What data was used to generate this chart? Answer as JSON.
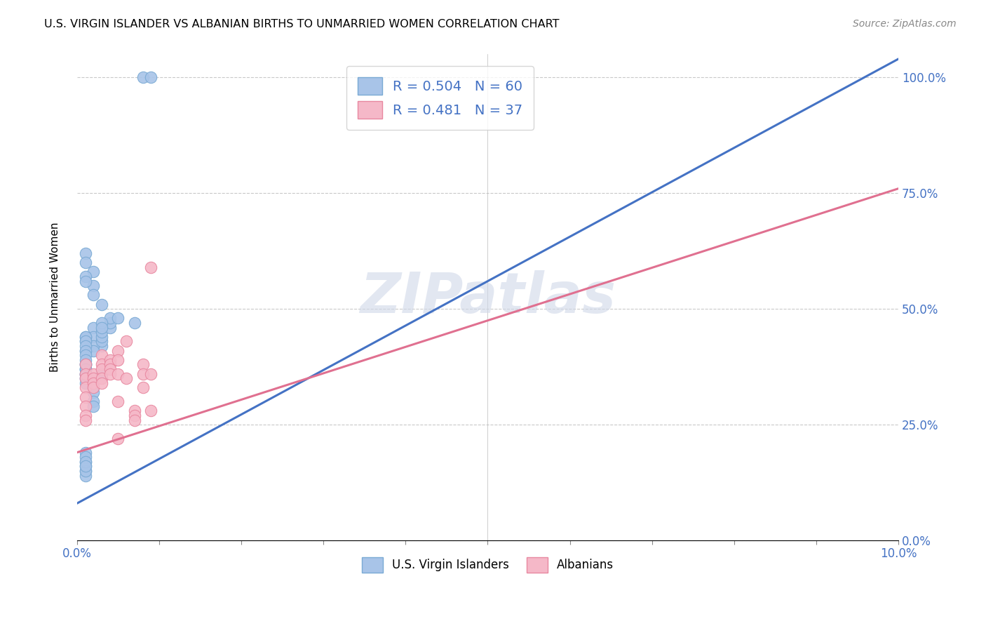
{
  "title": "U.S. VIRGIN ISLANDER VS ALBANIAN BIRTHS TO UNMARRIED WOMEN CORRELATION CHART",
  "source": "Source: ZipAtlas.com",
  "ylabel": "Births to Unmarried Women",
  "xlim": [
    0.0,
    0.1
  ],
  "ylim": [
    0.0,
    1.05
  ],
  "xtick_positions": [
    0.0,
    0.01,
    0.02,
    0.03,
    0.04,
    0.05,
    0.06,
    0.07,
    0.08,
    0.09,
    0.1
  ],
  "xtick_labels_sparse": {
    "0.0": "0.0%",
    "0.10": "10.0%"
  },
  "yticks": [
    0.0,
    0.25,
    0.5,
    0.75,
    1.0
  ],
  "ytick_labels": [
    "0.0%",
    "25.0%",
    "50.0%",
    "75.0%",
    "100.0%"
  ],
  "blue_color": "#a8c4e8",
  "blue_edge_color": "#7aaad4",
  "pink_color": "#f5b8c8",
  "pink_edge_color": "#e888a0",
  "blue_line_color": "#4472c4",
  "pink_line_color": "#e07090",
  "legend_r1": "R = 0.504",
  "legend_n1": "N = 60",
  "legend_r2": "R = 0.481",
  "legend_n2": "N = 37",
  "watermark": "ZIPatlas",
  "blue_scatter_x": [
    0.003,
    0.007,
    0.002,
    0.002,
    0.002,
    0.003,
    0.001,
    0.001,
    0.001,
    0.001,
    0.002,
    0.002,
    0.003,
    0.001,
    0.001,
    0.001,
    0.001,
    0.001,
    0.001,
    0.001,
    0.001,
    0.001,
    0.001,
    0.001,
    0.001,
    0.002,
    0.002,
    0.003,
    0.003,
    0.003,
    0.004,
    0.004,
    0.004,
    0.003,
    0.003,
    0.002,
    0.002,
    0.002,
    0.002,
    0.001,
    0.001,
    0.001,
    0.001,
    0.001,
    0.001,
    0.001,
    0.001,
    0.001,
    0.001,
    0.001,
    0.001,
    0.001,
    0.001,
    0.005,
    0.001,
    0.001,
    0.001,
    0.001,
    0.008,
    0.009
  ],
  "blue_scatter_y": [
    0.36,
    0.47,
    0.58,
    0.55,
    0.53,
    0.51,
    0.62,
    0.6,
    0.57,
    0.56,
    0.46,
    0.44,
    0.42,
    0.43,
    0.44,
    0.41,
    0.38,
    0.36,
    0.37,
    0.36,
    0.35,
    0.37,
    0.38,
    0.35,
    0.34,
    0.42,
    0.41,
    0.43,
    0.44,
    0.45,
    0.46,
    0.47,
    0.48,
    0.47,
    0.46,
    0.33,
    0.32,
    0.3,
    0.29,
    0.44,
    0.43,
    0.42,
    0.41,
    0.4,
    0.39,
    0.38,
    0.37,
    0.36,
    0.15,
    0.16,
    0.17,
    0.14,
    0.15,
    0.48,
    0.19,
    0.18,
    0.17,
    0.16,
    1.0,
    1.0
  ],
  "pink_scatter_x": [
    0.001,
    0.001,
    0.001,
    0.001,
    0.001,
    0.001,
    0.001,
    0.001,
    0.002,
    0.002,
    0.002,
    0.002,
    0.003,
    0.003,
    0.003,
    0.003,
    0.003,
    0.004,
    0.004,
    0.004,
    0.004,
    0.005,
    0.005,
    0.005,
    0.005,
    0.005,
    0.006,
    0.006,
    0.007,
    0.007,
    0.007,
    0.008,
    0.008,
    0.008,
    0.009,
    0.009,
    0.009
  ],
  "pink_scatter_y": [
    0.38,
    0.36,
    0.35,
    0.33,
    0.31,
    0.29,
    0.27,
    0.26,
    0.36,
    0.35,
    0.34,
    0.33,
    0.4,
    0.38,
    0.37,
    0.35,
    0.34,
    0.39,
    0.38,
    0.37,
    0.36,
    0.41,
    0.39,
    0.36,
    0.3,
    0.22,
    0.43,
    0.35,
    0.28,
    0.27,
    0.26,
    0.38,
    0.36,
    0.33,
    0.59,
    0.36,
    0.28
  ],
  "blue_line_x": [
    0.0,
    0.1
  ],
  "blue_line_y": [
    0.08,
    1.04
  ],
  "pink_line_x": [
    0.0,
    0.1
  ],
  "pink_line_y": [
    0.19,
    0.76
  ]
}
